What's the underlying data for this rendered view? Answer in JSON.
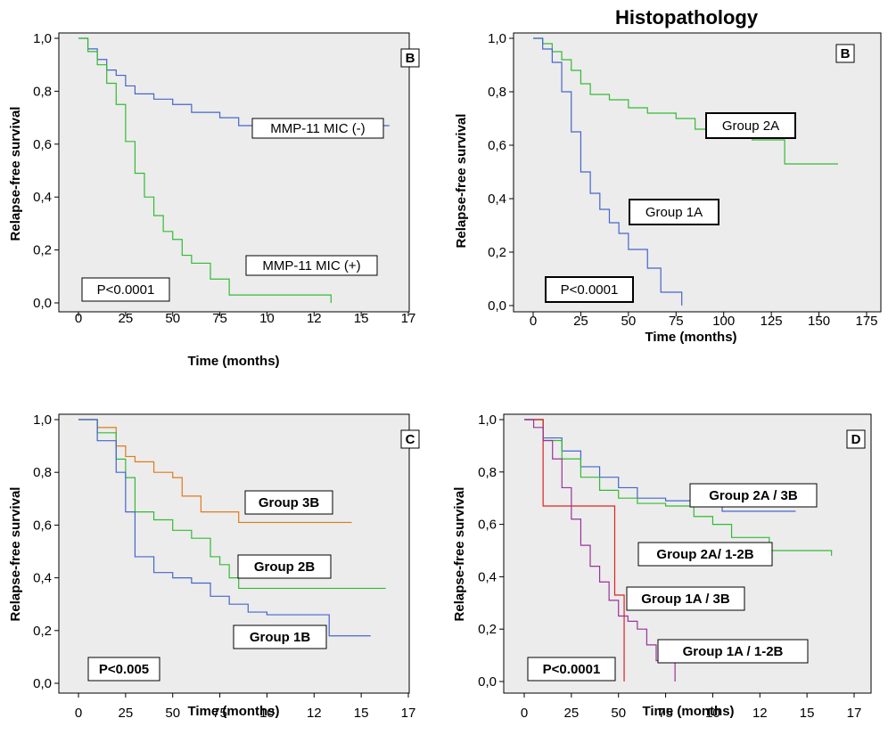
{
  "figure_title": "Histopathology",
  "chart_data": [
    {
      "id": "A",
      "type": "line",
      "panel_label": "B",
      "ylabel": "Relapse-free survival",
      "xlabel": "Time (months)",
      "x_ticks": [
        "0",
        "25",
        "50",
        "75",
        "10",
        "12",
        "15",
        "17"
      ],
      "y_ticks": [
        "0,0",
        "0,2",
        "0,4",
        "0,6",
        "0,8",
        "1,0"
      ],
      "xlim": [
        0,
        175
      ],
      "ylim": [
        0,
        1
      ],
      "p_value": "P<0.0001",
      "series": [
        {
          "name": "MMP-11 MIC (-)",
          "color": "#4466cc",
          "x": [
            0,
            5,
            10,
            15,
            20,
            25,
            30,
            40,
            50,
            60,
            75,
            85,
            125,
            165
          ],
          "y": [
            1.0,
            0.96,
            0.92,
            0.88,
            0.86,
            0.82,
            0.79,
            0.77,
            0.75,
            0.72,
            0.7,
            0.67,
            0.67,
            0.67
          ]
        },
        {
          "name": "MMP-11 MIC (+)",
          "color": "#33bb33",
          "x": [
            0,
            5,
            10,
            15,
            20,
            25,
            30,
            35,
            40,
            45,
            50,
            55,
            60,
            70,
            80,
            134
          ],
          "y": [
            1.0,
            0.95,
            0.9,
            0.83,
            0.75,
            0.61,
            0.49,
            0.4,
            0.33,
            0.27,
            0.24,
            0.18,
            0.15,
            0.09,
            0.03,
            0.0
          ]
        }
      ]
    },
    {
      "id": "B",
      "type": "line",
      "panel_label": "B",
      "ylabel": "Relapse-free survival",
      "xlabel": "Time (months)",
      "x_ticks": [
        "0",
        "25",
        "50",
        "75",
        "100",
        "125",
        "150",
        "175"
      ],
      "y_ticks": [
        "0,0",
        "0,2",
        "0,4",
        "0,6",
        "0,8",
        "1,0"
      ],
      "xlim": [
        0,
        175
      ],
      "ylim": [
        0,
        1
      ],
      "p_value": "P<0.0001",
      "series": [
        {
          "name": "Group 2A",
          "color": "#33bb33",
          "x": [
            0,
            5,
            10,
            15,
            20,
            25,
            30,
            40,
            50,
            60,
            75,
            85,
            100,
            115,
            132,
            160
          ],
          "y": [
            1.0,
            0.98,
            0.95,
            0.92,
            0.88,
            0.83,
            0.79,
            0.77,
            0.74,
            0.72,
            0.7,
            0.66,
            0.64,
            0.62,
            0.53,
            0.53
          ]
        },
        {
          "name": "Group 1A",
          "color": "#4466cc",
          "x": [
            0,
            5,
            10,
            15,
            20,
            25,
            30,
            35,
            40,
            45,
            50,
            60,
            67,
            78
          ],
          "y": [
            1.0,
            0.96,
            0.91,
            0.8,
            0.65,
            0.5,
            0.42,
            0.36,
            0.31,
            0.27,
            0.21,
            0.14,
            0.05,
            0.0
          ]
        }
      ]
    },
    {
      "id": "C",
      "type": "line",
      "panel_label": "C",
      "ylabel": "Relapse-free survival",
      "xlabel": "Time (months)",
      "x_ticks": [
        "0",
        "25",
        "50",
        "75",
        "10",
        "12",
        "15",
        "17"
      ],
      "y_ticks": [
        "0,0",
        "0,2",
        "0,4",
        "0,6",
        "0,8",
        "1,0"
      ],
      "xlim": [
        0,
        175
      ],
      "ylim": [
        0,
        1
      ],
      "p_value": "P<0.005",
      "series": [
        {
          "name": "Group 3B",
          "color": "#e07a1a",
          "x": [
            0,
            10,
            20,
            25,
            30,
            40,
            50,
            55,
            65,
            75,
            85,
            145
          ],
          "y": [
            1.0,
            0.97,
            0.9,
            0.86,
            0.84,
            0.8,
            0.78,
            0.71,
            0.65,
            0.65,
            0.61,
            0.61
          ]
        },
        {
          "name": "Group 2B",
          "color": "#33bb33",
          "x": [
            0,
            10,
            20,
            25,
            30,
            40,
            50,
            60,
            70,
            75,
            80,
            85,
            163
          ],
          "y": [
            1.0,
            0.95,
            0.85,
            0.78,
            0.65,
            0.62,
            0.58,
            0.55,
            0.48,
            0.45,
            0.4,
            0.36,
            0.36
          ]
        },
        {
          "name": "Group 1B",
          "color": "#4466cc",
          "x": [
            0,
            10,
            20,
            25,
            30,
            40,
            50,
            60,
            70,
            80,
            90,
            100,
            133,
            155
          ],
          "y": [
            1.0,
            0.92,
            0.8,
            0.65,
            0.48,
            0.42,
            0.4,
            0.38,
            0.33,
            0.3,
            0.27,
            0.26,
            0.18,
            0.18
          ]
        }
      ]
    },
    {
      "id": "D",
      "type": "line",
      "panel_label": "D",
      "ylabel": "Relapse-free survival",
      "xlabel": "Time (months)",
      "x_ticks": [
        "0",
        "25",
        "50",
        "75",
        "10",
        "12",
        "15",
        "17"
      ],
      "y_ticks": [
        "0,0",
        "0,2",
        "0,4",
        "0,6",
        "0,8",
        "1,0"
      ],
      "xlim": [
        0,
        175
      ],
      "ylim": [
        0,
        1
      ],
      "p_value": "P<0.0001",
      "series": [
        {
          "name": "Group 2A / 3B",
          "color": "#4466cc",
          "x": [
            0,
            10,
            20,
            30,
            40,
            50,
            60,
            75,
            90,
            105,
            144
          ],
          "y": [
            1.0,
            0.93,
            0.88,
            0.82,
            0.78,
            0.74,
            0.7,
            0.69,
            0.68,
            0.65,
            0.65
          ]
        },
        {
          "name": "Group 2A/ 1-2B",
          "color": "#33bb33",
          "x": [
            0,
            10,
            20,
            30,
            40,
            50,
            60,
            75,
            90,
            100,
            110,
            130,
            163
          ],
          "y": [
            1.0,
            0.92,
            0.85,
            0.78,
            0.73,
            0.7,
            0.68,
            0.67,
            0.63,
            0.6,
            0.55,
            0.5,
            0.48
          ]
        },
        {
          "name": "Group 1A / 3B",
          "color": "#dd2222",
          "x": [
            0,
            5,
            10,
            48,
            48,
            53,
            53
          ],
          "y": [
            1.0,
            1.0,
            0.67,
            0.67,
            0.33,
            0.33,
            0.0
          ]
        },
        {
          "name": "Group 1A / 1-2B",
          "color": "#993399",
          "x": [
            0,
            5,
            10,
            15,
            20,
            25,
            30,
            35,
            40,
            45,
            50,
            55,
            60,
            65,
            70,
            80
          ],
          "y": [
            1.0,
            0.97,
            0.92,
            0.85,
            0.74,
            0.62,
            0.52,
            0.44,
            0.38,
            0.31,
            0.25,
            0.23,
            0.2,
            0.14,
            0.08,
            0.0
          ]
        }
      ]
    }
  ]
}
